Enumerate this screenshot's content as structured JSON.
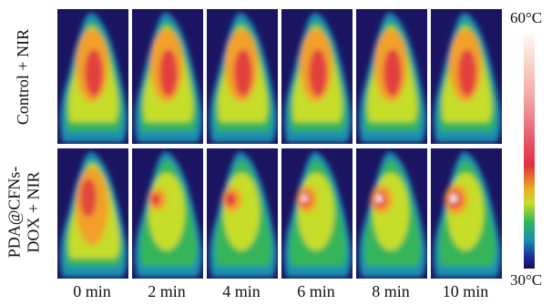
{
  "rows": [
    {
      "label": "Control + NIR",
      "treatment": false
    },
    {
      "label": "PDA@CFNs-\nDOX + NIR",
      "treatment": true
    }
  ],
  "time_points": [
    "0 min",
    "2 min",
    "4 min",
    "6 min",
    "8 min",
    "10 min"
  ],
  "colorbar": {
    "max_label": "60°C",
    "min_label": "30°C"
  },
  "colors": {
    "background_panel": "#1b1462",
    "hot": "#e0303f",
    "warm": "#f2a02a",
    "mid": "#c6dd2a",
    "cool": "#35b55a",
    "cold": "#1a8fb0"
  }
}
